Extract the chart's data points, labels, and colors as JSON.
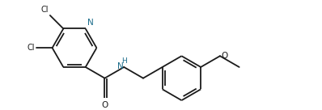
{
  "bg_color": "#ffffff",
  "bond_color": "#1a1a1a",
  "cl_color": "#1a1a1a",
  "n_color": "#1a6b8a",
  "o_color": "#1a1a1a",
  "lw": 1.3,
  "xlim": [
    0,
    10.5
  ],
  "ylim": [
    0,
    3.8
  ],
  "bl": 0.82
}
